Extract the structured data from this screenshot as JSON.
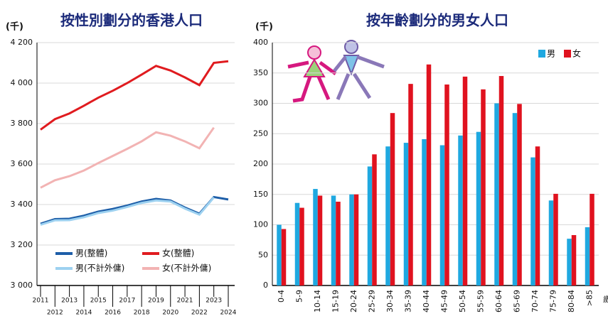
{
  "chart_data": [
    {
      "type": "line",
      "title": "按性別劃分的香港人口",
      "y_label": "(千)",
      "categories": [
        "2011",
        "2012",
        "2013",
        "2014",
        "2015",
        "2016",
        "2017",
        "2018",
        "2019",
        "2020",
        "2021",
        "2022",
        "2023",
        "2024"
      ],
      "series": [
        {
          "name": "男(整體)",
          "color": "#1d5ea8",
          "values": [
            3305,
            3328,
            3330,
            3345,
            3365,
            3378,
            3395,
            3415,
            3428,
            3420,
            3385,
            3355,
            3437,
            3425
          ]
        },
        {
          "name": "女(整體)",
          "color": "#e01b1f",
          "values": [
            3770,
            3822,
            3850,
            3888,
            3928,
            3962,
            4000,
            4042,
            4085,
            4062,
            4028,
            3990,
            4100,
            4108
          ]
        },
        {
          "name": "男(不計外傭)",
          "color": "#9dd1f0",
          "values": [
            3300,
            3322,
            3323,
            3337,
            3358,
            3370,
            3388,
            3408,
            3420,
            3415,
            3380,
            3350,
            3435,
            null
          ]
        },
        {
          "name": "女(不計外傭)",
          "color": "#f2b3b3",
          "values": [
            3483,
            3520,
            3540,
            3568,
            3605,
            3640,
            3675,
            3712,
            3757,
            3740,
            3712,
            3678,
            3780,
            null
          ]
        }
      ],
      "ylim": [
        3000,
        4200
      ],
      "yticks": [
        {
          "value": 3000,
          "label": "3 000"
        },
        {
          "value": 3200,
          "label": "3 200"
        },
        {
          "value": 3400,
          "label": "3 400"
        },
        {
          "value": 3600,
          "label": "3 600"
        },
        {
          "value": 3800,
          "label": "3 800"
        },
        {
          "value": 4000,
          "label": "4 000"
        },
        {
          "value": 4200,
          "label": "4 200"
        }
      ],
      "grid": true,
      "legend": "bottom"
    },
    {
      "type": "bar",
      "title": "按年齡劃分的男女人口",
      "y_label": "(千)",
      "x_label": "歲",
      "categories": [
        "0-4",
        "5-9",
        "10-14",
        "15-19",
        "20-24",
        "25-29",
        "30-34",
        "35-39",
        "40-44",
        "45-49",
        "50-54",
        "55-59",
        "60-64",
        "65-69",
        "70-74",
        "75-79",
        "80-84",
        ">85"
      ],
      "series": [
        {
          "name": "男",
          "color": "#1fa8e0",
          "values": [
            100,
            136,
            159,
            148,
            150,
            196,
            229,
            235,
            241,
            231,
            247,
            253,
            300,
            284,
            211,
            140,
            77,
            96
          ]
        },
        {
          "name": "女",
          "color": "#e0121f",
          "values": [
            93,
            128,
            148,
            138,
            150,
            216,
            284,
            332,
            364,
            331,
            344,
            323,
            345,
            299,
            229,
            151,
            83,
            151
          ]
        }
      ],
      "ylim": [
        0,
        400
      ],
      "yticks": [
        0,
        50,
        100,
        150,
        200,
        250,
        300,
        350,
        400
      ],
      "grid": true,
      "legend": "top-right"
    }
  ]
}
